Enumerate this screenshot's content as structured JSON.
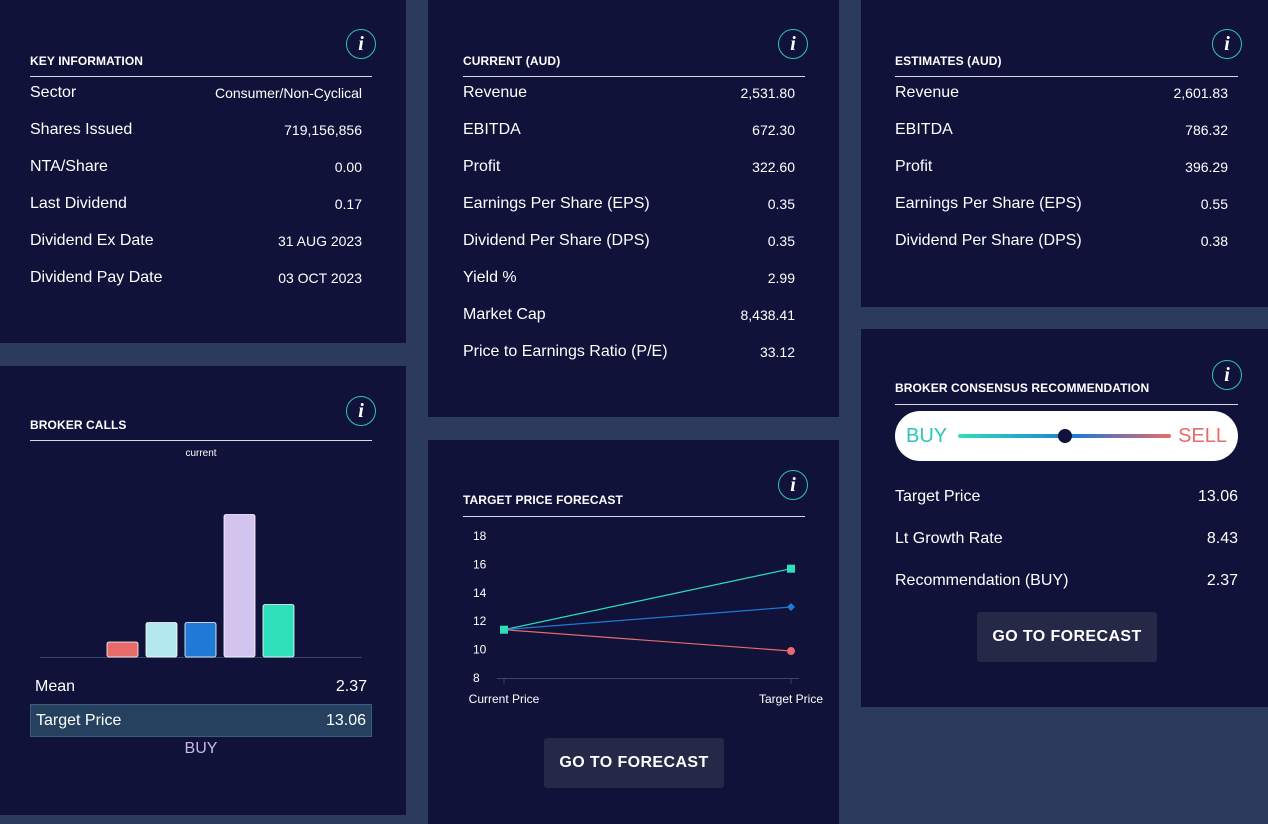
{
  "key_info": {
    "title": "KEY INFORMATION",
    "rows": [
      {
        "label": "Sector",
        "value": "Consumer/Non-Cyclical"
      },
      {
        "label": "Shares Issued",
        "value": "719,156,856"
      },
      {
        "label": "NTA/Share",
        "value": "0.00"
      },
      {
        "label": "Last Dividend",
        "value": "0.17"
      },
      {
        "label": "Dividend Ex Date",
        "value": "31 AUG 2023"
      },
      {
        "label": "Dividend Pay Date",
        "value": "03 OCT 2023"
      }
    ]
  },
  "current": {
    "title": "CURRENT (AUD)",
    "rows": [
      {
        "label": "Revenue",
        "value": "2,531.80"
      },
      {
        "label": "EBITDA",
        "value": "672.30"
      },
      {
        "label": "Profit",
        "value": "322.60"
      },
      {
        "label": "Earnings Per Share (EPS)",
        "value": "0.35"
      },
      {
        "label": "Dividend Per Share (DPS)",
        "value": "0.35"
      },
      {
        "label": "Yield %",
        "value": "2.99"
      },
      {
        "label": "Market Cap",
        "value": "8,438.41"
      },
      {
        "label": "Price to Earnings Ratio (P/E)",
        "value": "33.12"
      }
    ]
  },
  "estimates": {
    "title": "ESTIMATES (AUD)",
    "rows": [
      {
        "label": "Revenue",
        "value": "2,601.83"
      },
      {
        "label": "EBITDA",
        "value": "786.32"
      },
      {
        "label": "Profit",
        "value": "396.29"
      },
      {
        "label": "Earnings Per Share (EPS)",
        "value": "0.55"
      },
      {
        "label": "Dividend Per Share (DPS)",
        "value": "0.38"
      }
    ]
  },
  "broker_calls": {
    "title": "BROKER CALLS",
    "subtitle": "current",
    "mean_label": "Mean",
    "mean_value": "2.37",
    "target_label": "Target Price",
    "target_value": "13.06",
    "recommendation": "BUY"
  },
  "target_forecast": {
    "title": "TARGET PRICE FORECAST",
    "button": "GO TO FORECAST"
  },
  "consensus": {
    "title": "BROKER CONSENSUS RECOMMENDATION",
    "buy_label": "BUY",
    "sell_label": "SELL",
    "slider_position": 0.5,
    "rows": [
      {
        "label": "Target Price",
        "value": "13.06"
      },
      {
        "label": "Lt Growth Rate",
        "value": "8.43"
      },
      {
        "label": "Recommendation (BUY)",
        "value": "2.37"
      }
    ],
    "button": "GO TO FORECAST"
  },
  "info_icon_glyph": "i",
  "colors": {
    "panel": "#10123a",
    "background": "#2c3a5e",
    "teal": "#2de0b9",
    "blue": "#1f7ad6",
    "red": "#e86a6a",
    "lavender": "#d2c4ee",
    "light_cyan": "#b3e8ee",
    "buy": "#2ec4b6",
    "sell": "#e86a6a"
  },
  "chart_data": [
    {
      "type": "bar",
      "title": "",
      "categories": [
        "",
        "",
        "",
        "",
        ""
      ],
      "values": [
        1,
        2.3,
        2.3,
        9.5,
        3.5
      ],
      "colors": [
        "#e86a6a",
        "#b3e8ee",
        "#1f7ad6",
        "#d2c4ee",
        "#2de0b9"
      ],
      "ylim": [
        0,
        10
      ]
    },
    {
      "type": "line",
      "categories": [
        "Current Price",
        "Target Price"
      ],
      "series": [
        {
          "values": [
            11.4,
            15.7
          ],
          "color": "#2de0b9",
          "marker": "square"
        },
        {
          "values": [
            11.4,
            13.0
          ],
          "color": "#1f7ad6",
          "marker": "diamond"
        },
        {
          "values": [
            11.4,
            9.9
          ],
          "color": "#e86a6a",
          "marker": "circle"
        }
      ],
      "yticks": [
        8,
        10,
        12,
        14,
        16,
        18
      ],
      "ylim": [
        8,
        18
      ]
    }
  ]
}
